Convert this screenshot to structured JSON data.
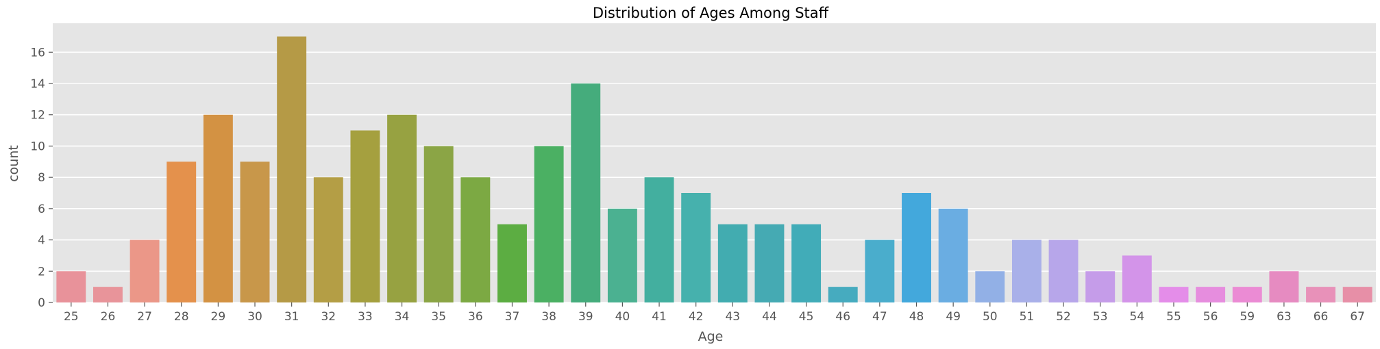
{
  "chart_data": {
    "type": "bar",
    "title": "Distribution of Ages Among Staff",
    "xlabel": "Age",
    "ylabel": "count",
    "categories": [
      "25",
      "26",
      "27",
      "28",
      "29",
      "30",
      "31",
      "32",
      "33",
      "34",
      "35",
      "36",
      "37",
      "38",
      "39",
      "40",
      "41",
      "42",
      "43",
      "44",
      "45",
      "46",
      "47",
      "48",
      "49",
      "50",
      "51",
      "52",
      "53",
      "54",
      "55",
      "56",
      "59",
      "63",
      "66",
      "67"
    ],
    "values": [
      2,
      1,
      4,
      9,
      12,
      9,
      17,
      8,
      11,
      12,
      10,
      8,
      5,
      10,
      14,
      6,
      8,
      7,
      5,
      5,
      5,
      1,
      4,
      7,
      6,
      2,
      4,
      4,
      2,
      3,
      1,
      1,
      1,
      2,
      1,
      1
    ],
    "ylim": [
      0,
      17.85
    ],
    "yticks": [
      0,
      2,
      4,
      6,
      8,
      10,
      12,
      14,
      16
    ],
    "grid": true,
    "legend": "none",
    "colors": [
      "#e8929a",
      "#e8949a",
      "#eb9788",
      "#e4914c",
      "#d39243",
      "#c8974a",
      "#b59a46",
      "#b49e45",
      "#a5a03f",
      "#97a241",
      "#8ba545",
      "#7ca943",
      "#5cad42",
      "#4bb063",
      "#45ac7c",
      "#4bb191",
      "#43af9f",
      "#46b1ad",
      "#42acb0",
      "#45aab3",
      "#41acb8",
      "#46abbf",
      "#4aadcc",
      "#43a8dc",
      "#6aade2",
      "#92b0e6",
      "#a9b0e9",
      "#b7a6ea",
      "#c59ce9",
      "#d394e9",
      "#e48de9",
      "#e68dde",
      "#eb8bd4",
      "#e68bc1",
      "#e891b9",
      "#e78fa7"
    ],
    "background": "#e5e5e5"
  }
}
